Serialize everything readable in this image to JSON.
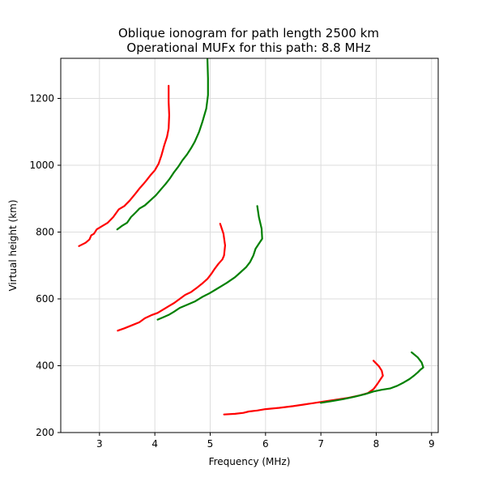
{
  "chart_data": {
    "type": "line",
    "title": "Oblique ionogram for path length 2500 km",
    "subtitle": "Operational MUFx for this path: 8.8 MHz",
    "xlabel": "Frequency (MHz)",
    "ylabel": "Virtual height (km)",
    "xlim": [
      2.3,
      9.12
    ],
    "ylim": [
      200,
      1320
    ],
    "xticks": [
      3,
      4,
      5,
      6,
      7,
      8,
      9
    ],
    "yticks": [
      200,
      400,
      600,
      800,
      1000,
      1200
    ],
    "grid": true,
    "colors": {
      "red": "#ff0000",
      "green": "#008000",
      "grid": "#dddddd",
      "axis": "#000000"
    },
    "series": [
      {
        "color": "red",
        "points": [
          [
            2.63,
            758
          ],
          [
            2.75,
            768
          ],
          [
            2.82,
            778
          ],
          [
            2.85,
            790
          ],
          [
            2.9,
            795
          ],
          [
            2.95,
            808
          ],
          [
            3.05,
            818
          ],
          [
            3.15,
            828
          ],
          [
            3.25,
            845
          ],
          [
            3.35,
            868
          ],
          [
            3.45,
            878
          ],
          [
            3.55,
            895
          ],
          [
            3.65,
            915
          ],
          [
            3.72,
            930
          ],
          [
            3.8,
            945
          ],
          [
            3.85,
            955
          ],
          [
            3.92,
            970
          ],
          [
            4.0,
            985
          ],
          [
            4.07,
            1005
          ],
          [
            4.12,
            1030
          ],
          [
            4.17,
            1060
          ],
          [
            4.22,
            1085
          ],
          [
            4.25,
            1110
          ],
          [
            4.26,
            1150
          ],
          [
            4.25,
            1190
          ],
          [
            4.25,
            1238
          ]
        ]
      },
      {
        "color": "green",
        "points": [
          [
            3.32,
            808
          ],
          [
            3.4,
            818
          ],
          [
            3.5,
            828
          ],
          [
            3.57,
            845
          ],
          [
            3.65,
            858
          ],
          [
            3.72,
            870
          ],
          [
            3.82,
            880
          ],
          [
            3.92,
            895
          ],
          [
            4.02,
            910
          ],
          [
            4.12,
            930
          ],
          [
            4.2,
            945
          ],
          [
            4.27,
            960
          ],
          [
            4.35,
            980
          ],
          [
            4.42,
            995
          ],
          [
            4.5,
            1015
          ],
          [
            4.58,
            1032
          ],
          [
            4.65,
            1050
          ],
          [
            4.72,
            1070
          ],
          [
            4.8,
            1100
          ],
          [
            4.86,
            1130
          ],
          [
            4.93,
            1170
          ],
          [
            4.96,
            1210
          ],
          [
            4.96,
            1260
          ],
          [
            4.95,
            1318
          ]
        ]
      },
      {
        "color": "red",
        "points": [
          [
            3.33,
            505
          ],
          [
            3.45,
            512
          ],
          [
            3.6,
            522
          ],
          [
            3.72,
            530
          ],
          [
            3.82,
            542
          ],
          [
            3.95,
            552
          ],
          [
            4.05,
            558
          ],
          [
            4.15,
            568
          ],
          [
            4.25,
            578
          ],
          [
            4.35,
            588
          ],
          [
            4.45,
            600
          ],
          [
            4.55,
            612
          ],
          [
            4.65,
            620
          ],
          [
            4.75,
            632
          ],
          [
            4.85,
            645
          ],
          [
            4.95,
            660
          ],
          [
            5.02,
            675
          ],
          [
            5.08,
            690
          ],
          [
            5.15,
            705
          ],
          [
            5.22,
            718
          ],
          [
            5.25,
            730
          ],
          [
            5.27,
            760
          ],
          [
            5.24,
            795
          ],
          [
            5.18,
            825
          ]
        ]
      },
      {
        "color": "green",
        "points": [
          [
            4.05,
            538
          ],
          [
            4.15,
            545
          ],
          [
            4.25,
            552
          ],
          [
            4.35,
            562
          ],
          [
            4.45,
            573
          ],
          [
            4.58,
            582
          ],
          [
            4.72,
            592
          ],
          [
            4.85,
            605
          ],
          [
            5.0,
            618
          ],
          [
            5.1,
            628
          ],
          [
            5.2,
            638
          ],
          [
            5.3,
            648
          ],
          [
            5.45,
            665
          ],
          [
            5.55,
            680
          ],
          [
            5.65,
            695
          ],
          [
            5.72,
            710
          ],
          [
            5.78,
            730
          ],
          [
            5.82,
            750
          ],
          [
            5.88,
            765
          ],
          [
            5.94,
            780
          ],
          [
            5.93,
            810
          ],
          [
            5.88,
            845
          ],
          [
            5.85,
            878
          ]
        ]
      },
      {
        "color": "red",
        "points": [
          [
            5.25,
            254
          ],
          [
            5.45,
            256
          ],
          [
            5.6,
            259
          ],
          [
            5.7,
            263
          ],
          [
            5.85,
            266
          ],
          [
            6.0,
            270
          ],
          [
            6.25,
            274
          ],
          [
            6.5,
            279
          ],
          [
            6.7,
            284
          ],
          [
            6.9,
            289
          ],
          [
            7.1,
            294
          ],
          [
            7.3,
            299
          ],
          [
            7.5,
            304
          ],
          [
            7.7,
            311
          ],
          [
            7.85,
            318
          ],
          [
            7.95,
            330
          ],
          [
            8.02,
            345
          ],
          [
            8.08,
            360
          ],
          [
            8.12,
            370
          ],
          [
            8.1,
            385
          ],
          [
            8.05,
            398
          ],
          [
            7.95,
            415
          ]
        ]
      },
      {
        "color": "green",
        "points": [
          [
            7.0,
            289
          ],
          [
            7.2,
            294
          ],
          [
            7.4,
            300
          ],
          [
            7.6,
            307
          ],
          [
            7.8,
            315
          ],
          [
            7.95,
            323
          ],
          [
            8.1,
            328
          ],
          [
            8.25,
            332
          ],
          [
            8.38,
            340
          ],
          [
            8.5,
            350
          ],
          [
            8.6,
            360
          ],
          [
            8.68,
            370
          ],
          [
            8.75,
            380
          ],
          [
            8.8,
            388
          ],
          [
            8.85,
            395
          ],
          [
            8.82,
            410
          ],
          [
            8.75,
            425
          ],
          [
            8.64,
            440
          ]
        ]
      }
    ]
  }
}
